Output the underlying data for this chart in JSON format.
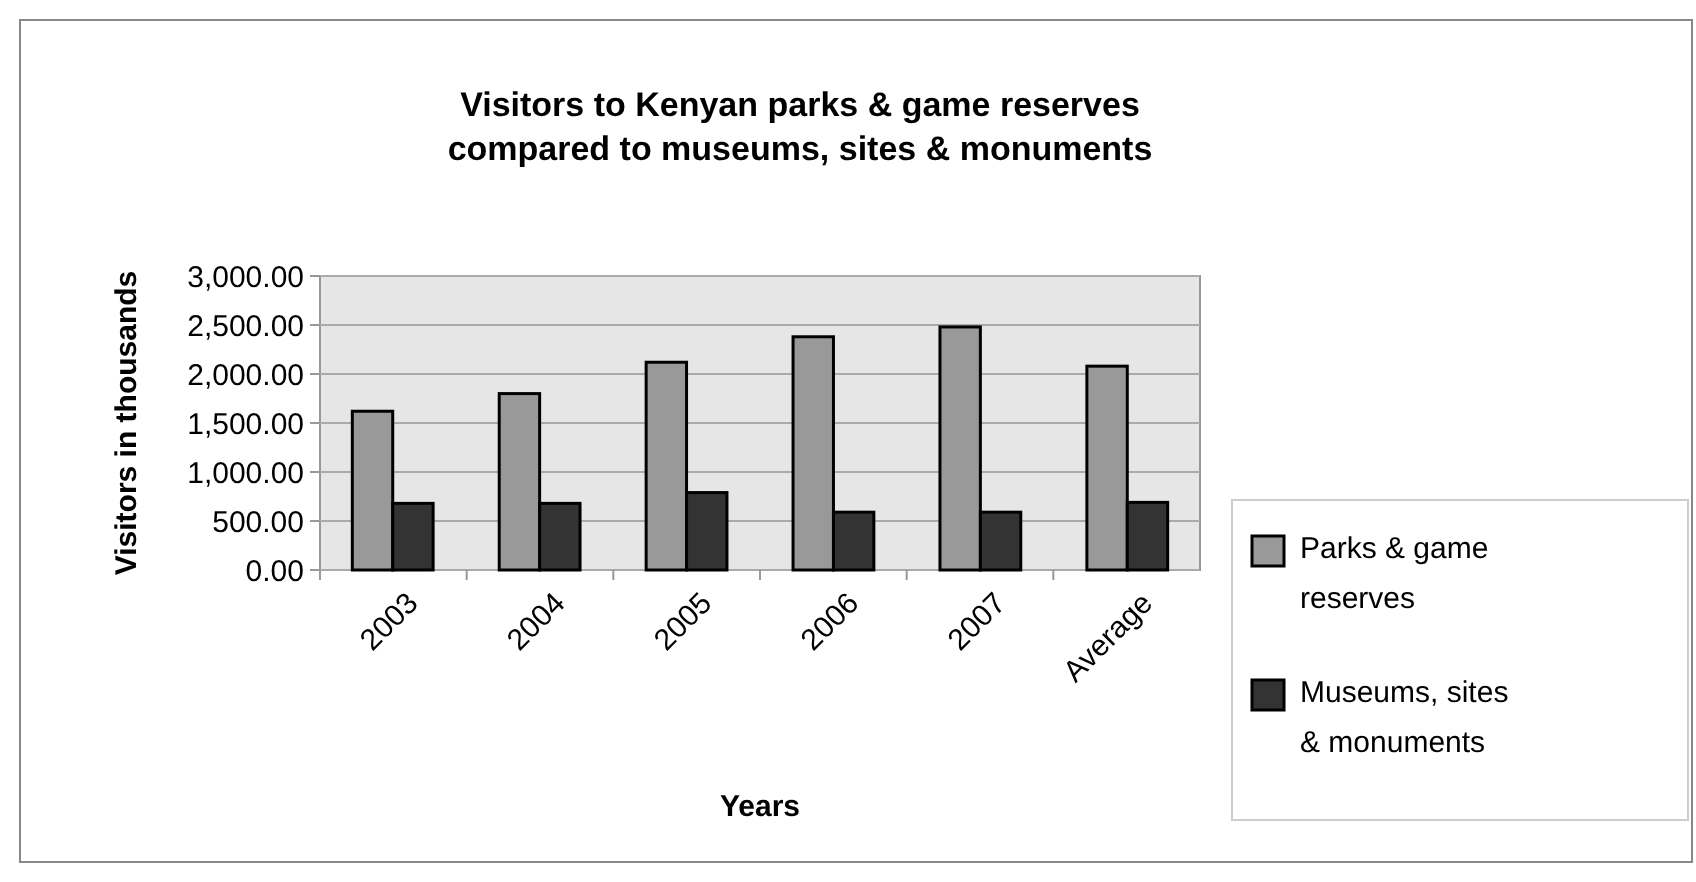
{
  "chart_data": {
    "type": "bar",
    "title": "Visitors to Kenyan parks & game reserves\ncompared to museums, sites & monuments",
    "xlabel": "Years",
    "ylabel": "Visitors in thousands",
    "categories": [
      "2003",
      "2004",
      "2005",
      "2006",
      "2007",
      "Average"
    ],
    "series": [
      {
        "name": "Parks & game reserves",
        "color": "#999999",
        "values": [
          1620,
          1800,
          2120,
          2380,
          2480,
          2080
        ]
      },
      {
        "name": "Museums, sites & monuments",
        "color": "#333333",
        "values": [
          680,
          680,
          790,
          590,
          590,
          690
        ]
      }
    ],
    "ylim": [
      0,
      3000
    ],
    "yticks": [
      {
        "value": 0,
        "label": "0.00"
      },
      {
        "value": 500,
        "label": "500.00"
      },
      {
        "value": 1000,
        "label": "1,000.00"
      },
      {
        "value": 1500,
        "label": "1,500.00"
      },
      {
        "value": 2000,
        "label": "2,000.00"
      },
      {
        "value": 2500,
        "label": "2,500.00"
      },
      {
        "value": 3000,
        "label": "3,000.00"
      }
    ],
    "grid": "y",
    "legend": "right"
  }
}
